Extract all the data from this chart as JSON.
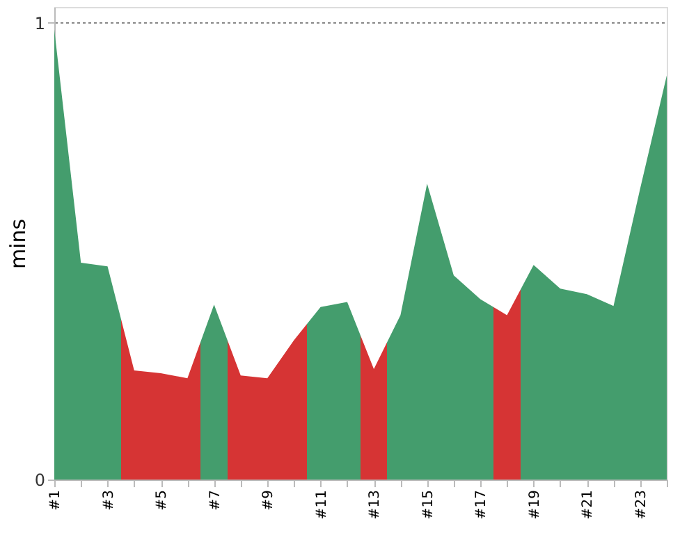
{
  "chart_data": {
    "type": "area",
    "ylabel": "mins",
    "categories": [
      "#1",
      null,
      "#3",
      null,
      "#5",
      null,
      "#7",
      null,
      "#9",
      null,
      "#11",
      null,
      "#13",
      null,
      "#15",
      null,
      "#17",
      null,
      "#19",
      null,
      "#21",
      null,
      "#23",
      null
    ],
    "values": [
      0.986,
      0.475,
      0.467,
      0.239,
      0.233,
      0.222,
      0.383,
      0.228,
      0.222,
      0.305,
      0.378,
      0.389,
      0.242,
      0.36,
      0.648,
      0.447,
      0.395,
      0.36,
      0.47,
      0.418,
      0.406,
      0.38,
      0.637,
      0.885
    ],
    "colors": [
      "#449d6d",
      "#449d6d",
      "#449d6d",
      "#d63434",
      "#d63434",
      "#d63434",
      "#449d6d",
      "#d63434",
      "#d63434",
      "#d63434",
      "#449d6d",
      "#449d6d",
      "#d63434",
      "#449d6d",
      "#449d6d",
      "#449d6d",
      "#449d6d",
      "#d63434",
      "#449d6d",
      "#449d6d",
      "#449d6d",
      "#449d6d",
      "#449d6d",
      "#449d6d"
    ],
    "ylim": [
      0,
      1.035
    ],
    "yticks": [
      0,
      1
    ],
    "grid": "y"
  }
}
